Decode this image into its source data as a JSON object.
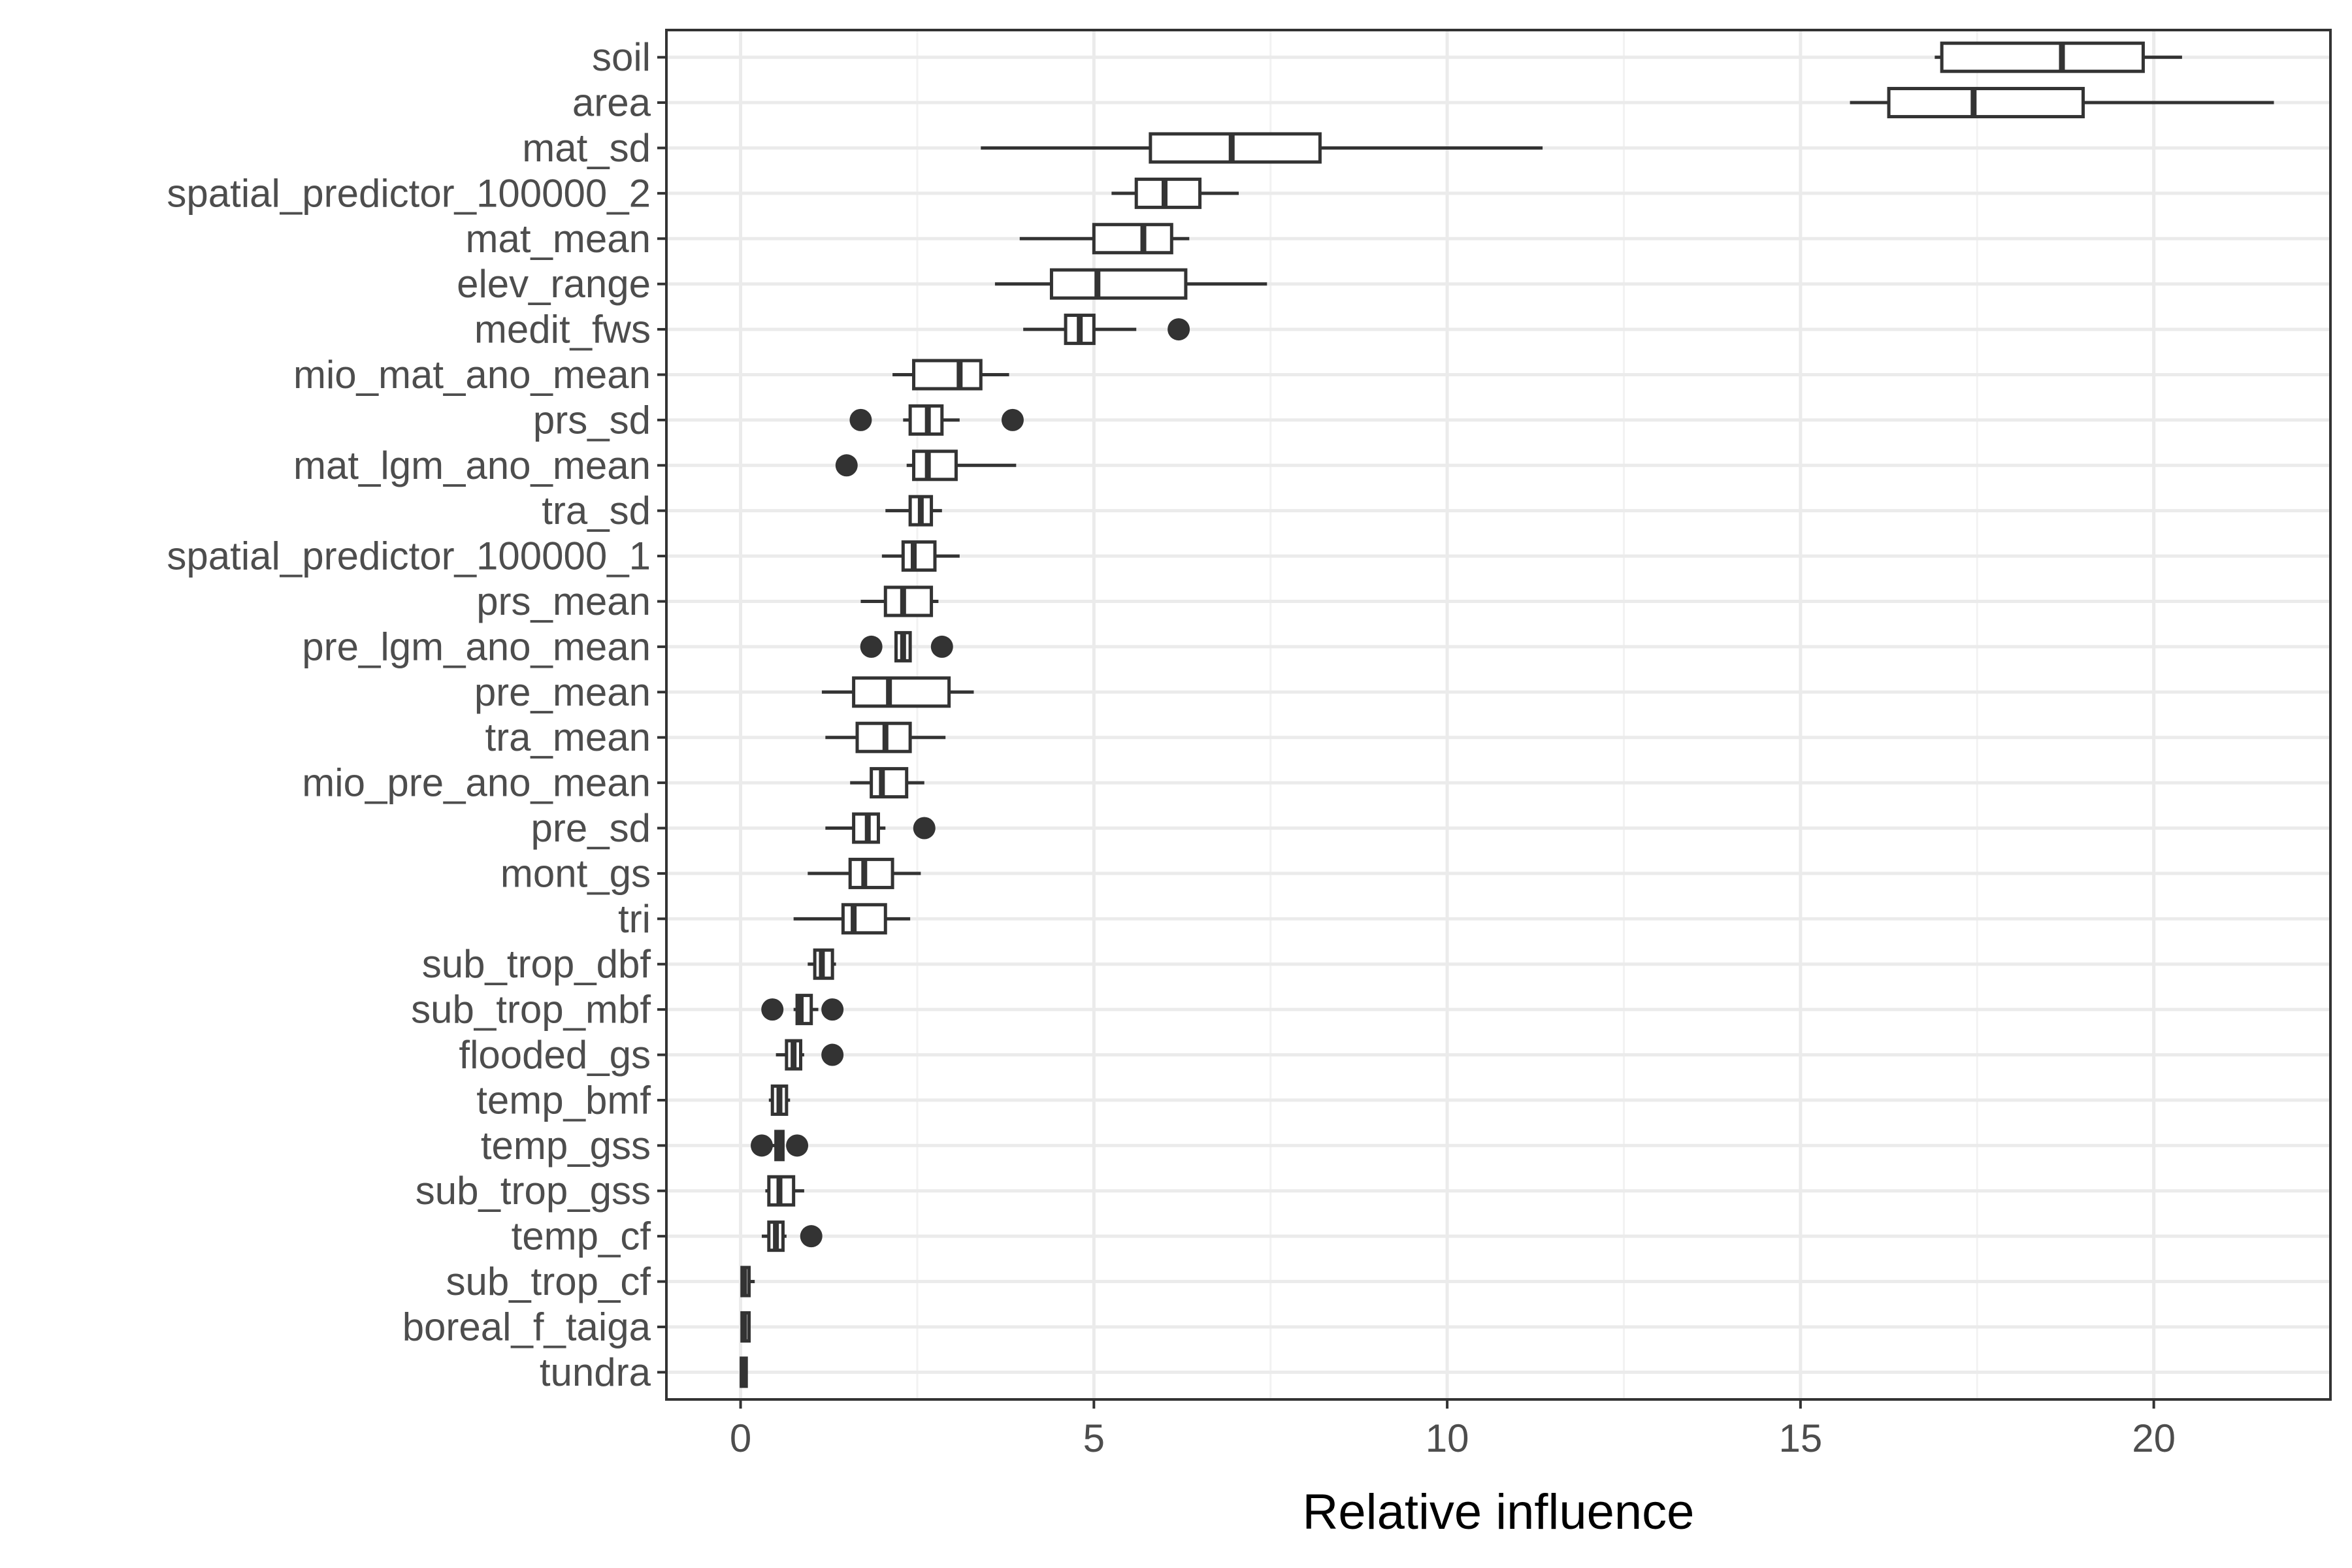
{
  "chart_data": {
    "type": "boxplot",
    "orientation": "horizontal",
    "title": "",
    "xlabel": "Relative influence",
    "ylabel": "",
    "xlim": [
      -1.05,
      22.5
    ],
    "x_ticks": [
      0,
      5,
      10,
      15,
      20
    ],
    "x_tick_labels": [
      "0",
      "5",
      "10",
      "15",
      "20"
    ],
    "grid": true,
    "legend": "none",
    "colors": {
      "box_stroke": "#333333",
      "box_fill": "#ffffff",
      "grid_major": "#ebebeb",
      "grid_minor": "#f2f2f2",
      "panel_border": "#333333"
    },
    "categories": [
      {
        "name": "soil",
        "min": 16.9,
        "q1": 17.0,
        "median": 18.7,
        "q3": 19.85,
        "max": 20.4,
        "outliers": []
      },
      {
        "name": "area",
        "min": 15.7,
        "q1": 16.25,
        "median": 17.45,
        "q3": 19.0,
        "max": 21.7,
        "outliers": []
      },
      {
        "name": "mat_sd",
        "min": 3.4,
        "q1": 5.8,
        "median": 6.95,
        "q3": 8.2,
        "max": 11.35,
        "outliers": []
      },
      {
        "name": "spatial_predictor_100000_2",
        "min": 5.25,
        "q1": 5.6,
        "median": 6.0,
        "q3": 6.5,
        "max": 7.05,
        "outliers": []
      },
      {
        "name": "mat_mean",
        "min": 3.95,
        "q1": 5.0,
        "median": 5.7,
        "q3": 6.1,
        "max": 6.35,
        "outliers": []
      },
      {
        "name": "elev_range",
        "min": 3.6,
        "q1": 4.4,
        "median": 5.05,
        "q3": 6.3,
        "max": 7.45,
        "outliers": []
      },
      {
        "name": "medit_fws",
        "min": 4.0,
        "q1": 4.6,
        "median": 4.8,
        "q3": 5.0,
        "max": 5.6,
        "outliers": [
          6.2
        ]
      },
      {
        "name": "mio_mat_ano_mean",
        "min": 2.15,
        "q1": 2.45,
        "median": 3.1,
        "q3": 3.4,
        "max": 3.8,
        "outliers": []
      },
      {
        "name": "prs_sd",
        "min": 2.3,
        "q1": 2.4,
        "median": 2.65,
        "q3": 2.85,
        "max": 3.1,
        "outliers": [
          1.7,
          3.85
        ]
      },
      {
        "name": "mat_lgm_ano_mean",
        "min": 2.35,
        "q1": 2.45,
        "median": 2.65,
        "q3": 3.05,
        "max": 3.9,
        "outliers": [
          1.5
        ]
      },
      {
        "name": "tra_sd",
        "min": 2.05,
        "q1": 2.4,
        "median": 2.55,
        "q3": 2.7,
        "max": 2.85,
        "outliers": []
      },
      {
        "name": "spatial_predictor_100000_1",
        "min": 2.0,
        "q1": 2.3,
        "median": 2.45,
        "q3": 2.75,
        "max": 3.1,
        "outliers": []
      },
      {
        "name": "prs_mean",
        "min": 1.7,
        "q1": 2.05,
        "median": 2.3,
        "q3": 2.7,
        "max": 2.8,
        "outliers": []
      },
      {
        "name": "pre_lgm_ano_mean",
        "min": 2.2,
        "q1": 2.2,
        "median": 2.3,
        "q3": 2.4,
        "max": 2.4,
        "outliers": [
          1.85,
          2.85
        ]
      },
      {
        "name": "pre_mean",
        "min": 1.15,
        "q1": 1.6,
        "median": 2.1,
        "q3": 2.95,
        "max": 3.3,
        "outliers": []
      },
      {
        "name": "tra_mean",
        "min": 1.2,
        "q1": 1.65,
        "median": 2.05,
        "q3": 2.4,
        "max": 2.9,
        "outliers": []
      },
      {
        "name": "mio_pre_ano_mean",
        "min": 1.55,
        "q1": 1.85,
        "median": 2.0,
        "q3": 2.35,
        "max": 2.6,
        "outliers": []
      },
      {
        "name": "pre_sd",
        "min": 1.2,
        "q1": 1.6,
        "median": 1.8,
        "q3": 1.95,
        "max": 2.05,
        "outliers": [
          2.6
        ]
      },
      {
        "name": "mont_gs",
        "min": 0.95,
        "q1": 1.55,
        "median": 1.75,
        "q3": 2.15,
        "max": 2.55,
        "outliers": []
      },
      {
        "name": "tri",
        "min": 0.75,
        "q1": 1.45,
        "median": 1.6,
        "q3": 2.05,
        "max": 2.4,
        "outliers": []
      },
      {
        "name": "sub_trop_dbf",
        "min": 0.95,
        "q1": 1.05,
        "median": 1.15,
        "q3": 1.3,
        "max": 1.35,
        "outliers": []
      },
      {
        "name": "sub_trop_mbf",
        "min": 0.75,
        "q1": 0.8,
        "median": 0.85,
        "q3": 1.0,
        "max": 1.1,
        "outliers": [
          0.45,
          1.3
        ]
      },
      {
        "name": "flooded_gs",
        "min": 0.5,
        "q1": 0.65,
        "median": 0.75,
        "q3": 0.85,
        "max": 0.9,
        "outliers": [
          1.3
        ]
      },
      {
        "name": "temp_bmf",
        "min": 0.4,
        "q1": 0.45,
        "median": 0.55,
        "q3": 0.65,
        "max": 0.7,
        "outliers": []
      },
      {
        "name": "temp_gss",
        "min": 0.45,
        "q1": 0.5,
        "median": 0.55,
        "q3": 0.6,
        "max": 0.6,
        "outliers": [
          0.3,
          0.8
        ]
      },
      {
        "name": "sub_trop_gss",
        "min": 0.35,
        "q1": 0.4,
        "median": 0.55,
        "q3": 0.75,
        "max": 0.9,
        "outliers": []
      },
      {
        "name": "temp_cf",
        "min": 0.3,
        "q1": 0.4,
        "median": 0.5,
        "q3": 0.6,
        "max": 0.65,
        "outliers": [
          1.0
        ]
      },
      {
        "name": "sub_trop_cf",
        "min": 0.0,
        "q1": 0.02,
        "median": 0.05,
        "q3": 0.12,
        "max": 0.2,
        "outliers": []
      },
      {
        "name": "boreal_f_taiga",
        "min": 0.0,
        "q1": 0.02,
        "median": 0.05,
        "q3": 0.12,
        "max": 0.13,
        "outliers": []
      },
      {
        "name": "tundra",
        "min": 0.0,
        "q1": 0.01,
        "median": 0.03,
        "q3": 0.08,
        "max": 0.09,
        "outliers": []
      }
    ]
  }
}
